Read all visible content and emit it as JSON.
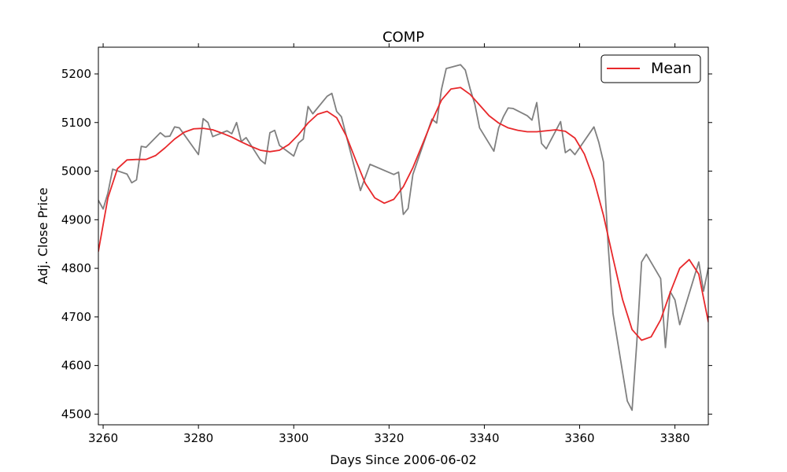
{
  "chart_data": {
    "type": "line",
    "title": "COMP",
    "xlabel": "Days Since 2006-06-02",
    "ylabel": "Adj. Close Price",
    "xlim": [
      3259,
      3387
    ],
    "ylim": [
      4478,
      5255
    ],
    "xticks": [
      3260,
      3280,
      3300,
      3320,
      3340,
      3360,
      3380
    ],
    "yticks": [
      4500,
      4600,
      4700,
      4800,
      4900,
      5000,
      5100,
      5200
    ],
    "grid": false,
    "legend_position": "top-right",
    "series": [
      {
        "name": "",
        "color": "#808080",
        "points": [
          [
            3259,
            4940
          ],
          [
            3260,
            4922
          ],
          [
            3261,
            4955
          ],
          [
            3262,
            5004
          ],
          [
            3265,
            4994
          ],
          [
            3266,
            4976
          ],
          [
            3267,
            4982
          ],
          [
            3268,
            5051
          ],
          [
            3269,
            5049
          ],
          [
            3272,
            5079
          ],
          [
            3273,
            5071
          ],
          [
            3274,
            5072
          ],
          [
            3275,
            5091
          ],
          [
            3276,
            5089
          ],
          [
            3280,
            5034
          ],
          [
            3281,
            5108
          ],
          [
            3282,
            5100
          ],
          [
            3283,
            5071
          ],
          [
            3284,
            5075
          ],
          [
            3286,
            5083
          ],
          [
            3287,
            5077
          ],
          [
            3288,
            5100
          ],
          [
            3289,
            5061
          ],
          [
            3290,
            5069
          ],
          [
            3293,
            5023
          ],
          [
            3294,
            5015
          ],
          [
            3295,
            5079
          ],
          [
            3296,
            5084
          ],
          [
            3297,
            5053
          ],
          [
            3300,
            5031
          ],
          [
            3301,
            5058
          ],
          [
            3302,
            5066
          ],
          [
            3303,
            5133
          ],
          [
            3304,
            5118
          ],
          [
            3307,
            5154
          ],
          [
            3308,
            5160
          ],
          [
            3309,
            5123
          ],
          [
            3310,
            5112
          ],
          [
            3314,
            4960
          ],
          [
            3316,
            5014
          ],
          [
            3321,
            4993
          ],
          [
            3322,
            4998
          ],
          [
            3323,
            4911
          ],
          [
            3324,
            4923
          ],
          [
            3325,
            4993
          ],
          [
            3329,
            5107
          ],
          [
            3330,
            5099
          ],
          [
            3331,
            5168
          ],
          [
            3332,
            5211
          ],
          [
            3335,
            5219
          ],
          [
            3336,
            5208
          ],
          [
            3337,
            5170
          ],
          [
            3338,
            5138
          ],
          [
            3339,
            5089
          ],
          [
            3342,
            5041
          ],
          [
            3343,
            5089
          ],
          [
            3344,
            5112
          ],
          [
            3345,
            5130
          ],
          [
            3346,
            5129
          ],
          [
            3349,
            5114
          ],
          [
            3350,
            5105
          ],
          [
            3351,
            5141
          ],
          [
            3352,
            5057
          ],
          [
            3353,
            5046
          ],
          [
            3356,
            5102
          ],
          [
            3357,
            5038
          ],
          [
            3358,
            5045
          ],
          [
            3359,
            5034
          ],
          [
            3363,
            5091
          ],
          [
            3364,
            5060
          ],
          [
            3365,
            5019
          ],
          [
            3366,
            4845
          ],
          [
            3367,
            4707
          ],
          [
            3370,
            4527
          ],
          [
            3371,
            4508
          ],
          [
            3372,
            4648
          ],
          [
            3373,
            4813
          ],
          [
            3374,
            4829
          ],
          [
            3377,
            4779
          ],
          [
            3378,
            4637
          ],
          [
            3379,
            4752
          ],
          [
            3380,
            4735
          ],
          [
            3381,
            4684
          ],
          [
            3385,
            4813
          ],
          [
            3386,
            4753
          ],
          [
            3387,
            4801
          ]
        ]
      },
      {
        "name": "Mean",
        "color": "#e8282b",
        "points": [
          [
            3259,
            4835
          ],
          [
            3261,
            4945
          ],
          [
            3263,
            5005
          ],
          [
            3265,
            5023
          ],
          [
            3267,
            5024
          ],
          [
            3269,
            5024
          ],
          [
            3271,
            5032
          ],
          [
            3273,
            5048
          ],
          [
            3275,
            5066
          ],
          [
            3277,
            5080
          ],
          [
            3279,
            5087
          ],
          [
            3281,
            5088
          ],
          [
            3283,
            5085
          ],
          [
            3285,
            5078
          ],
          [
            3287,
            5070
          ],
          [
            3289,
            5060
          ],
          [
            3291,
            5051
          ],
          [
            3293,
            5043
          ],
          [
            3295,
            5040
          ],
          [
            3297,
            5043
          ],
          [
            3299,
            5055
          ],
          [
            3301,
            5075
          ],
          [
            3303,
            5099
          ],
          [
            3305,
            5117
          ],
          [
            3307,
            5123
          ],
          [
            3309,
            5110
          ],
          [
            3311,
            5073
          ],
          [
            3313,
            5023
          ],
          [
            3315,
            4975
          ],
          [
            3317,
            4945
          ],
          [
            3319,
            4934
          ],
          [
            3321,
            4942
          ],
          [
            3323,
            4968
          ],
          [
            3325,
            5007
          ],
          [
            3327,
            5055
          ],
          [
            3329,
            5103
          ],
          [
            3331,
            5146
          ],
          [
            3333,
            5169
          ],
          [
            3335,
            5172
          ],
          [
            3337,
            5158
          ],
          [
            3339,
            5136
          ],
          [
            3341,
            5114
          ],
          [
            3343,
            5099
          ],
          [
            3345,
            5089
          ],
          [
            3347,
            5084
          ],
          [
            3349,
            5081
          ],
          [
            3351,
            5081
          ],
          [
            3353,
            5083
          ],
          [
            3355,
            5085
          ],
          [
            3357,
            5082
          ],
          [
            3359,
            5068
          ],
          [
            3361,
            5035
          ],
          [
            3363,
            4982
          ],
          [
            3365,
            4909
          ],
          [
            3367,
            4821
          ],
          [
            3369,
            4736
          ],
          [
            3371,
            4674
          ],
          [
            3373,
            4652
          ],
          [
            3375,
            4659
          ],
          [
            3377,
            4694
          ],
          [
            3379,
            4750
          ],
          [
            3381,
            4800
          ],
          [
            3383,
            4818
          ],
          [
            3385,
            4788
          ],
          [
            3387,
            4690
          ]
        ]
      }
    ]
  }
}
